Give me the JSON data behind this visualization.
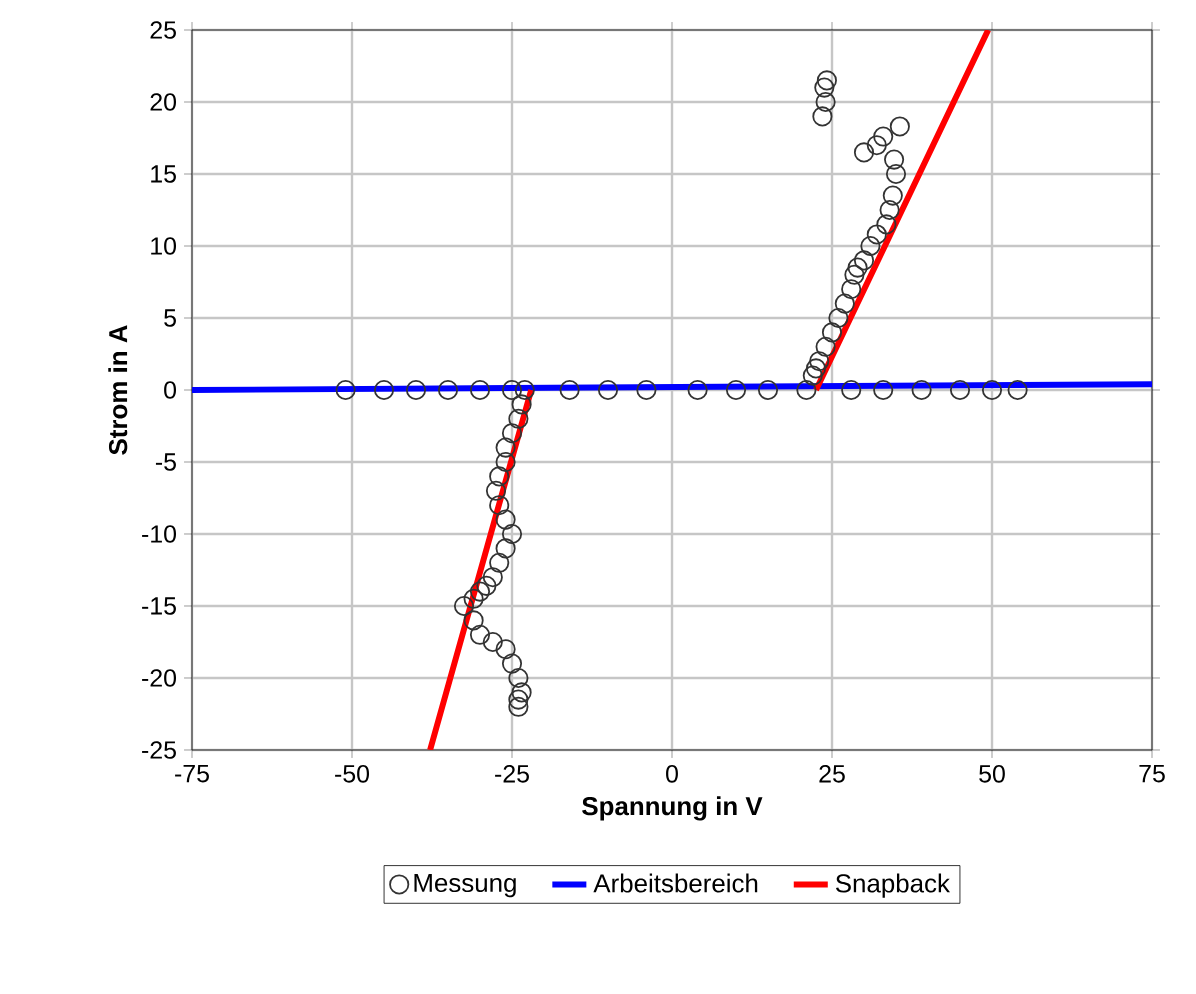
{
  "chart_data": {
    "type": "scatter",
    "xlabel": "Spannung in V",
    "ylabel": "Strom in A",
    "xlim": [
      -75,
      75
    ],
    "ylim": [
      -25,
      25
    ],
    "xticks": [
      -75,
      -50,
      -25,
      0,
      25,
      50,
      75
    ],
    "yticks": [
      -25,
      -20,
      -15,
      -10,
      -5,
      0,
      5,
      10,
      15,
      20,
      25
    ],
    "grid": true,
    "legend": "bottom",
    "series": [
      {
        "name": "Messung",
        "marker": "circle",
        "color": "#333333",
        "x": [
          -51,
          -45,
          -40,
          -35,
          -30,
          -25,
          -16,
          -10,
          -4,
          4,
          10,
          15,
          21,
          28,
          33,
          39,
          45,
          50,
          54,
          -23,
          -23.5,
          -24,
          -25,
          -26,
          -26,
          -27,
          -27.5,
          -27,
          -26,
          -25,
          -26,
          -27,
          -28,
          -29,
          -30,
          -31,
          -32.5,
          -31,
          -30,
          -28,
          -26,
          -25,
          -24,
          -23.5,
          -24,
          -24,
          22,
          22.5,
          23,
          24,
          25,
          26,
          27,
          28,
          28.5,
          29,
          30,
          31,
          32,
          33.5,
          34,
          34.5,
          35,
          34.7,
          33,
          30,
          32,
          35.6,
          23.5,
          24,
          23.8,
          24.2
        ],
        "values": [
          0,
          0,
          0,
          0,
          0,
          0,
          0,
          0,
          0,
          0,
          0,
          0,
          0,
          0,
          0,
          0,
          0,
          0,
          0,
          0,
          -1,
          -2,
          -3,
          -4,
          -5,
          -6,
          -7,
          -8,
          -9,
          -10,
          -11,
          -12,
          -13,
          -13.6,
          -14,
          -14.5,
          -15,
          -16,
          -17,
          -17.5,
          -18,
          -19,
          -20,
          -21,
          -21.5,
          -22,
          1,
          1.5,
          2,
          3,
          4,
          5,
          6,
          7,
          8,
          8.5,
          9,
          10,
          10.8,
          11.5,
          12.5,
          13.5,
          15,
          16,
          17.6,
          16.5,
          17,
          18.3,
          19,
          20,
          21,
          21.5
        ]
      },
      {
        "name": "Arbeitsbereich",
        "type": "line",
        "marker": "none",
        "color": "#0000ff",
        "x": [
          -75,
          75
        ],
        "values": [
          0,
          0.4
        ]
      },
      {
        "name": "Snapback",
        "type": "line",
        "marker": "none",
        "color": "#ff0000",
        "x": [
          -37.8,
          -22,
          0,
          22.5,
          49.4
        ],
        "values": [
          -25,
          0,
          null,
          0,
          25
        ]
      }
    ]
  }
}
